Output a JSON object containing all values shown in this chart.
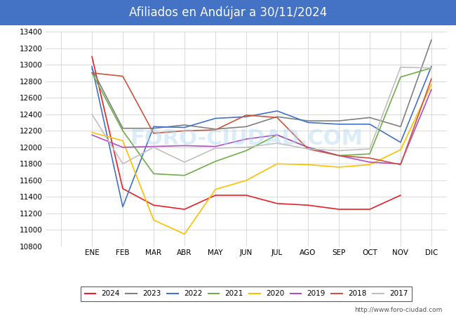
{
  "title": "Afiliados en Andújar a 30/11/2024",
  "title_bg_color": "#4472c4",
  "title_text_color": "white",
  "ylim": [
    10800,
    13400
  ],
  "yticks": [
    10800,
    11000,
    11200,
    11400,
    11600,
    11800,
    12000,
    12200,
    12400,
    12600,
    12800,
    13000,
    13200,
    13400
  ],
  "months": [
    "",
    "ENE",
    "FEB",
    "MAR",
    "ABR",
    "MAY",
    "JUN",
    "JUL",
    "AGO",
    "SEP",
    "OCT",
    "NOV",
    "DIC"
  ],
  "watermark": "FORO-CIUDAD.COM",
  "footer": "http://www.foro-ciudad.com",
  "series": {
    "2024": {
      "color": "#e8202a",
      "data": [
        null,
        13100,
        11500,
        11300,
        11250,
        11420,
        11420,
        11320,
        11300,
        11250,
        11250,
        11420,
        null
      ]
    },
    "2023": {
      "color": "#808080",
      "data": [
        null,
        12950,
        12230,
        12230,
        12270,
        12220,
        12250,
        12370,
        12320,
        12320,
        12360,
        12250,
        13300
      ]
    },
    "2022": {
      "color": "#4472c4",
      "data": [
        null,
        12980,
        11280,
        12250,
        12240,
        12350,
        12370,
        12440,
        12300,
        12280,
        12280,
        12060,
        12980
      ]
    },
    "2021": {
      "color": "#70ad47",
      "data": [
        null,
        12900,
        12200,
        11680,
        11660,
        11830,
        11960,
        12150,
        12000,
        11900,
        11920,
        12850,
        12960
      ]
    },
    "2020": {
      "color": "#ffc000",
      "data": [
        null,
        12180,
        12080,
        11120,
        10950,
        11490,
        11600,
        11800,
        11790,
        11760,
        11790,
        11970,
        12760
      ]
    },
    "2019": {
      "color": "#b04fc4",
      "data": [
        null,
        12150,
        12000,
        12010,
        12020,
        12010,
        12100,
        12150,
        12000,
        11900,
        11820,
        11800,
        12700
      ]
    },
    "2018": {
      "color": "#c9563c",
      "data": [
        null,
        12900,
        12860,
        12170,
        12200,
        12210,
        12390,
        12360,
        11980,
        11900,
        11870,
        11790,
        12830
      ]
    },
    "2017": {
      "color": "#c0c0c0",
      "data": [
        null,
        12400,
        11800,
        12000,
        11820,
        11990,
        12000,
        12050,
        11980,
        11960,
        11980,
        12970,
        12960
      ]
    }
  }
}
